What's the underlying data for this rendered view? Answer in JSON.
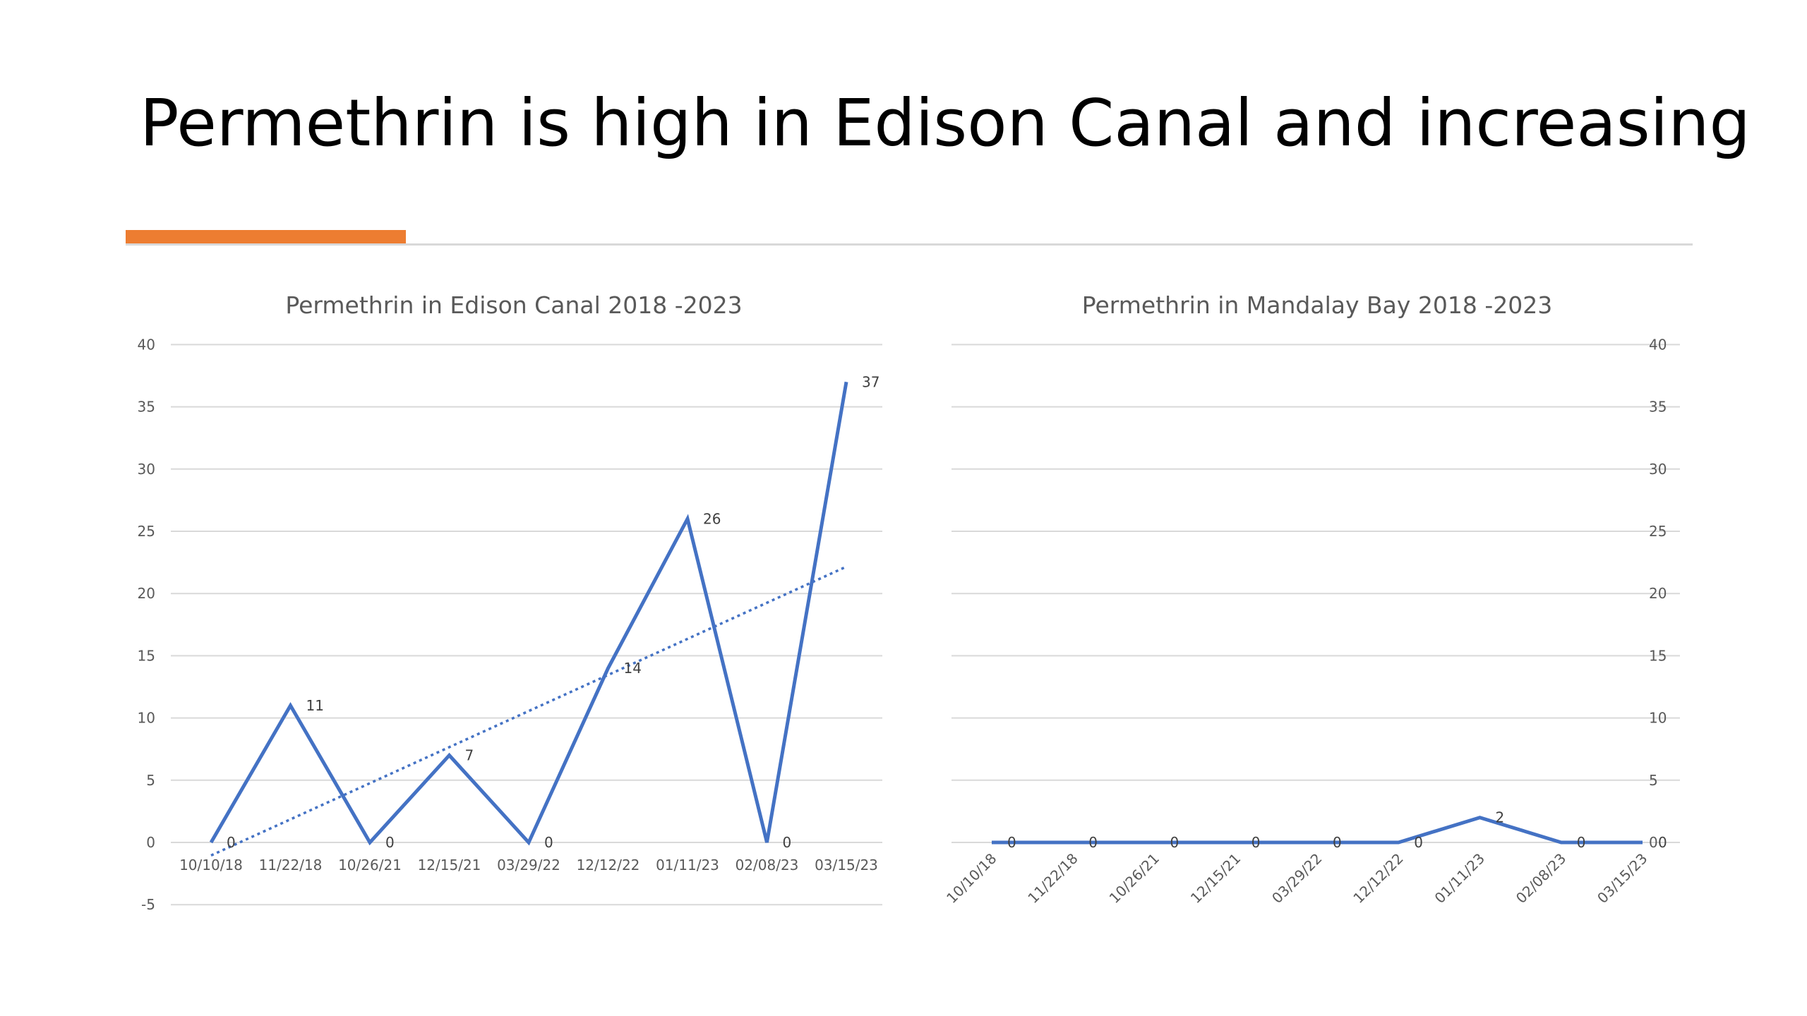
{
  "slide": {
    "title": "Permethrin is high in Edison Canal and increasing",
    "accent_color": "#ed7d31"
  },
  "chart_data": [
    {
      "type": "line",
      "title": "Permethrin in Edison Canal 2018 -2023",
      "categories": [
        "10/10/18",
        "11/22/18",
        "10/26/21",
        "12/15/21",
        "03/29/22",
        "12/12/22",
        "01/11/23",
        "02/08/23",
        "03/15/23"
      ],
      "series": [
        {
          "values": [
            0,
            11,
            0,
            7,
            0,
            14,
            26,
            0,
            37
          ],
          "color": "#4472c4"
        }
      ],
      "trendline": "linear",
      "ylim": [
        -5,
        40
      ],
      "yticks": [
        -5,
        0,
        5,
        10,
        15,
        20,
        25,
        30,
        35,
        40
      ],
      "y_axis_side": "left",
      "grid": true,
      "data_labels": true
    },
    {
      "type": "line",
      "title": "Permethrin in Mandalay Bay 2018 -2023",
      "categories": [
        "10/10/18",
        "11/22/18",
        "10/26/21",
        "12/15/21",
        "03/29/22",
        "12/12/22",
        "01/11/23",
        "02/08/23",
        "03/15/23"
      ],
      "series": [
        {
          "values": [
            0,
            0,
            0,
            0,
            0,
            0,
            2,
            0,
            0
          ],
          "color": "#4472c4"
        }
      ],
      "ylim": [
        0,
        40
      ],
      "yticks": [
        0,
        5,
        10,
        15,
        20,
        25,
        30,
        35,
        40
      ],
      "y_axis_side": "right",
      "grid": true,
      "data_labels": true,
      "rotated_x_labels": true
    }
  ]
}
